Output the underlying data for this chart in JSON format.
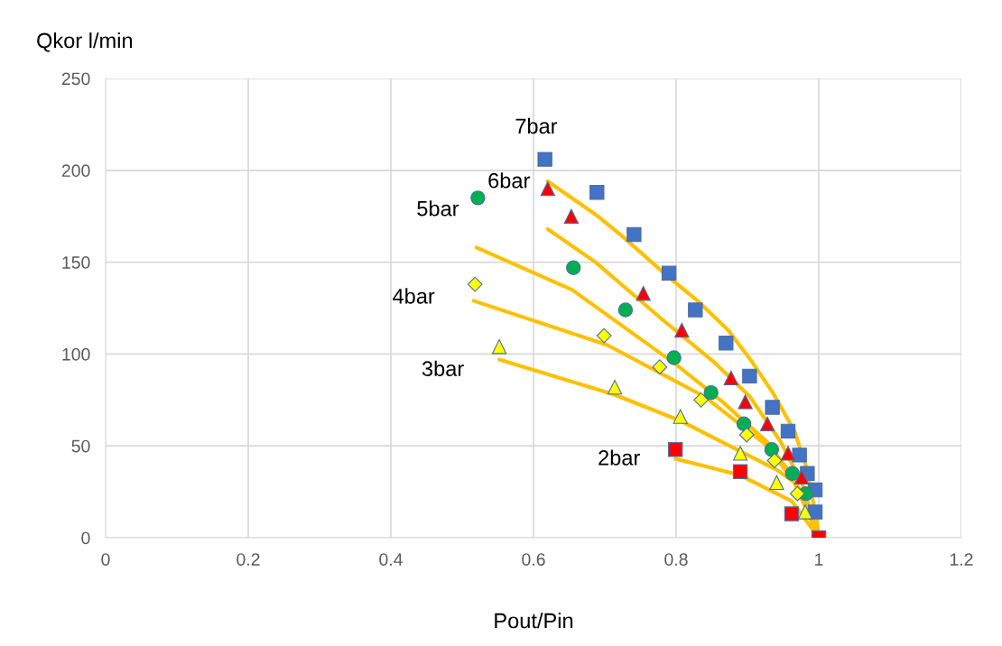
{
  "chart_data": {
    "type": "scatter",
    "xlabel": "Pout/Pin",
    "ylabel": "Qkor l/min",
    "xlim": [
      0,
      1.2
    ],
    "ylim": [
      0,
      250
    ],
    "xticks": [
      0,
      0.2,
      0.4,
      0.6,
      0.8,
      1,
      1.2
    ],
    "yticks": [
      0,
      50,
      100,
      150,
      200,
      250
    ],
    "grid": true,
    "series": [
      {
        "name": "7bar",
        "marker": "square",
        "color": "#4472c4",
        "x": [
          0.616,
          0.689,
          0.741,
          0.79,
          0.827,
          0.87,
          0.903,
          0.935,
          0.957,
          0.973,
          0.984,
          0.995,
          0.995
        ],
        "values": [
          206,
          188,
          165,
          144,
          124,
          106,
          88,
          71,
          58,
          45,
          35,
          26,
          14
        ]
      },
      {
        "name": "6bar",
        "marker": "triangle",
        "color": "#ff0000",
        "x": [
          0.62,
          0.653,
          0.754,
          0.808,
          0.877,
          0.897,
          0.928,
          0.957,
          0.976
        ],
        "values": [
          190,
          175,
          133,
          113,
          87,
          74,
          62,
          46,
          33
        ]
      },
      {
        "name": "5bar",
        "marker": "circle",
        "color": "#00b050",
        "x": [
          0.522,
          0.656,
          0.729,
          0.797,
          0.849,
          0.895,
          0.934,
          0.963,
          0.982
        ],
        "values": [
          185,
          147,
          124,
          98,
          79,
          62,
          48,
          35,
          24
        ]
      },
      {
        "name": "4bar",
        "marker": "diamond",
        "color": "#ffff00",
        "x": [
          0.518,
          0.699,
          0.777,
          0.835,
          0.899,
          0.938,
          0.97
        ],
        "values": [
          138,
          110,
          93,
          75,
          56,
          42,
          24
        ]
      },
      {
        "name": "3bar",
        "marker": "triangle",
        "color": "#ffff00",
        "x": [
          0.552,
          0.714,
          0.806,
          0.89,
          0.941,
          0.981
        ],
        "values": [
          104,
          82,
          66,
          46,
          30,
          14
        ]
      },
      {
        "name": "2bar",
        "marker": "square",
        "color": "#ff0000",
        "x": [
          0.799,
          0.89,
          0.962,
          1.0
        ],
        "values": [
          48,
          36,
          13,
          0
        ]
      },
      {
        "type": "line",
        "color": "#ffc000",
        "x": [
          0.62,
          0.687,
          0.725,
          0.789,
          0.83,
          0.873,
          0.906,
          0.937,
          0.966,
          0.982,
          0.995,
          1.0
        ],
        "values": [
          194,
          176,
          164,
          142,
          129,
          113,
          96,
          78,
          58,
          39,
          14,
          1
        ]
      },
      {
        "type": "line",
        "color": "#ffc000",
        "x": [
          0.62,
          0.687,
          0.78,
          0.852,
          0.903,
          0.947,
          0.978,
          1.0
        ],
        "values": [
          168,
          150,
          119,
          96,
          77,
          52,
          28,
          0
        ]
      },
      {
        "type": "line",
        "color": "#ffc000",
        "x": [
          0.52,
          0.654,
          0.801,
          0.865,
          0.928,
          0.966,
          1.0
        ],
        "values": [
          158,
          135,
          94,
          74,
          52,
          32,
          0
        ]
      },
      {
        "type": "line",
        "color": "#ffc000",
        "x": [
          0.516,
          0.703,
          0.839,
          0.928,
          0.972,
          1.0
        ],
        "values": [
          129,
          105,
          77,
          50,
          27,
          0
        ]
      },
      {
        "type": "line",
        "color": "#ffc000",
        "x": [
          0.552,
          0.713,
          0.804,
          0.941,
          0.966,
          1.0
        ],
        "values": [
          97,
          78,
          64,
          37,
          30,
          0
        ]
      },
      {
        "type": "line",
        "color": "#ffc000",
        "x": [
          0.799,
          0.89,
          0.962,
          1.0
        ],
        "values": [
          43,
          34,
          20,
          0
        ]
      }
    ]
  }
}
